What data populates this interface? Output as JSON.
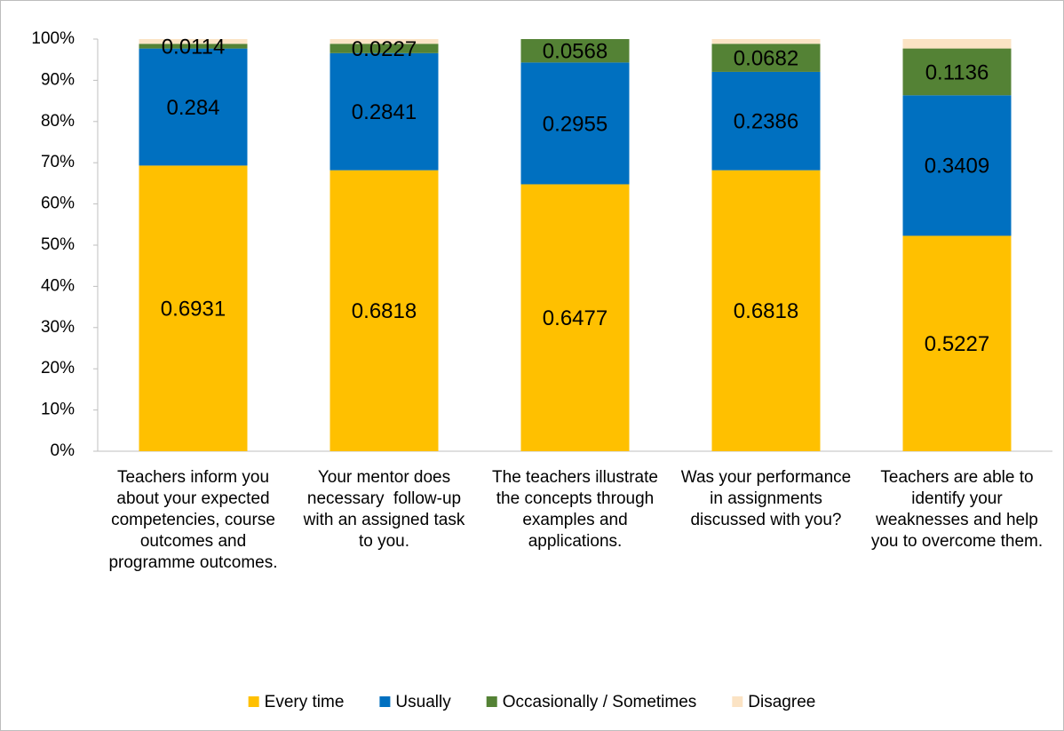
{
  "chart_data": {
    "type": "stacked_bar",
    "categories": [
      "Teachers inform you about your expected competencies, course outcomes and programme outcomes.",
      "Your mentor does necessary  follow-up with an assigned task to you.",
      "The teachers illustrate the concepts through examples and applications.",
      "Was your performance in assignments discussed with you?",
      "Teachers are able to identify your weaknesses and help you to overcome them."
    ],
    "series": [
      {
        "name": "Every time",
        "color": "#ffc000",
        "show_labels": true,
        "values": [
          0.6931,
          0.6818,
          0.6477,
          0.6818,
          0.5227
        ]
      },
      {
        "name": "Usually",
        "color": "#0070c0",
        "show_labels": true,
        "values": [
          0.284,
          0.2841,
          0.2955,
          0.2386,
          0.3409
        ]
      },
      {
        "name": "Occasionally / Sometimes",
        "color": "#548235",
        "show_labels": true,
        "values": [
          0.0114,
          0.0227,
          0.0568,
          0.0682,
          0.1136
        ]
      },
      {
        "name": "Disagree",
        "color": "#fbe3c4",
        "show_labels": false,
        "values": [
          0.0115,
          0.0114,
          0,
          0.0114,
          0.0228
        ]
      }
    ],
    "ylim": [
      0,
      1
    ],
    "yticks": [
      {
        "value": 0,
        "label": "0%"
      },
      {
        "value": 0.1,
        "label": "10%"
      },
      {
        "value": 0.2,
        "label": "20%"
      },
      {
        "value": 0.3,
        "label": "30%"
      },
      {
        "value": 0.4,
        "label": "40%"
      },
      {
        "value": 0.5,
        "label": "50%"
      },
      {
        "value": 0.6,
        "label": "60%"
      },
      {
        "value": 0.7,
        "label": "70%"
      },
      {
        "value": 0.8,
        "label": "80%"
      },
      {
        "value": 0.9,
        "label": "90%"
      },
      {
        "value": 1,
        "label": "100%"
      }
    ],
    "grid": false,
    "legend": "bottom"
  }
}
